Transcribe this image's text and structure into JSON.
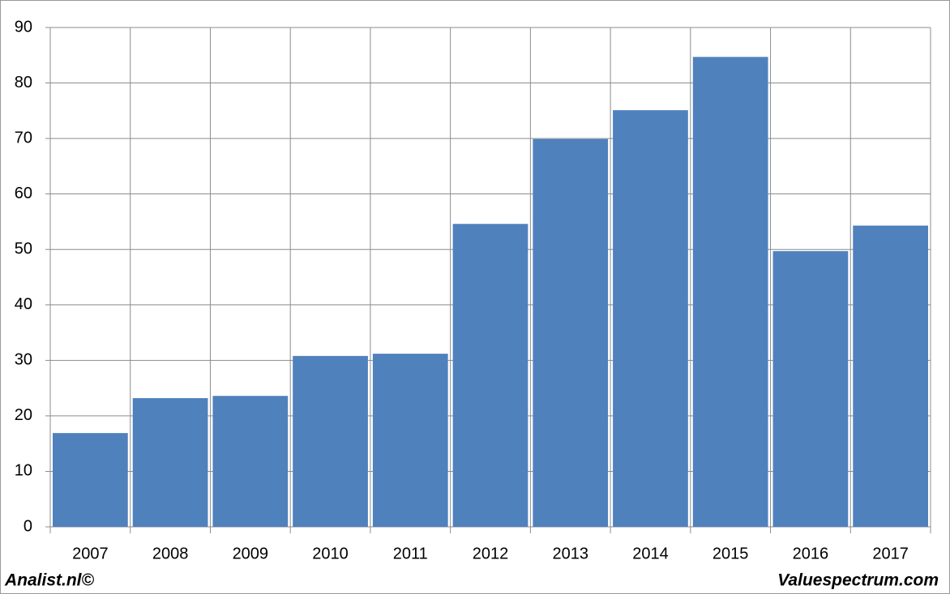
{
  "chart_data": {
    "type": "bar",
    "categories": [
      "2007",
      "2008",
      "2009",
      "2010",
      "2011",
      "2012",
      "2013",
      "2014",
      "2015",
      "2016",
      "2017"
    ],
    "values": [
      16.9,
      23.2,
      23.6,
      30.8,
      31.2,
      54.6,
      69.9,
      75.1,
      84.7,
      49.7,
      54.3
    ],
    "color": "#4f81bd",
    "ylim": [
      0,
      90
    ],
    "yticks": [
      0,
      10,
      20,
      30,
      40,
      50,
      60,
      70,
      80,
      90
    ],
    "grid": true,
    "annotations": [
      "Analist.nl©",
      "Valuespectrum.com"
    ]
  }
}
